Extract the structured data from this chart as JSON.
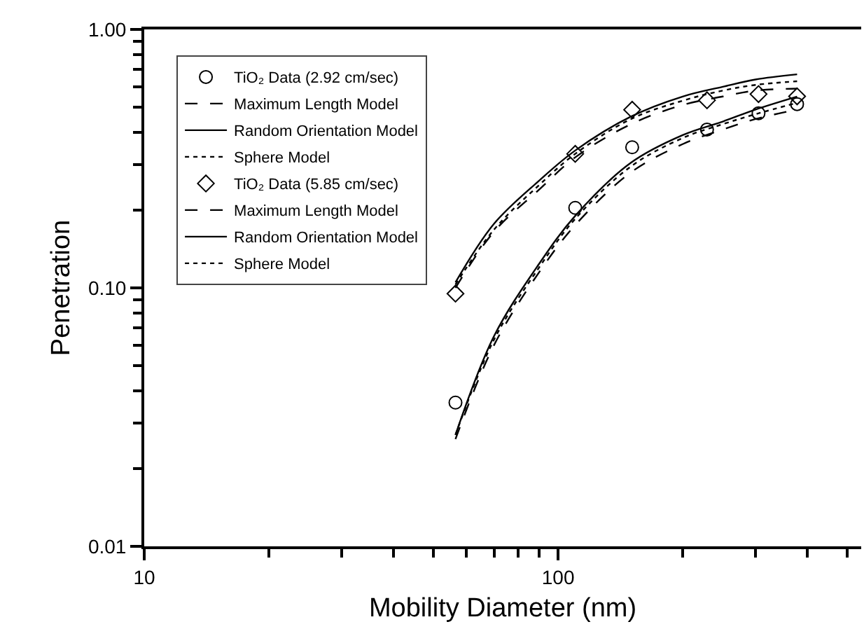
{
  "chart_data": {
    "type": "line",
    "xlabel": "Mobility Diameter (nm)",
    "ylabel": "Penetration",
    "log": "xy",
    "grid": false,
    "legend": "top left",
    "xlim": [
      10,
      540
    ],
    "xticks": [
      10,
      100
    ],
    "ylim": [
      0.01,
      1.0
    ],
    "yticks": [
      {
        "value": 0.01,
        "label": "0.01"
      },
      {
        "value": 0.1,
        "label": "0.10"
      },
      {
        "value": 1.0,
        "label": "1.00"
      }
    ],
    "series": [
      {
        "name": "TiO₂ Data (2.92 cm/sec)",
        "type": "scatter",
        "marker": "circle",
        "color": "#000000",
        "x": [
          56.5,
          110,
          151,
          229,
          305,
          378
        ],
        "values": [
          0.036,
          0.204,
          0.35,
          0.41,
          0.474,
          0.514
        ]
      },
      {
        "name": "Maximum Length Model",
        "line_style": "dashed",
        "color": "#000000",
        "x": [
          56.5,
          70,
          90,
          110,
          150,
          200,
          250,
          300,
          378
        ],
        "values": [
          0.026,
          0.06,
          0.115,
          0.175,
          0.28,
          0.36,
          0.41,
          0.45,
          0.49
        ]
      },
      {
        "name": "Random Orientation Model",
        "line_style": "solid",
        "color": "#000000",
        "x": [
          56.5,
          70,
          90,
          110,
          150,
          200,
          250,
          300,
          378
        ],
        "values": [
          0.027,
          0.065,
          0.124,
          0.19,
          0.305,
          0.39,
          0.44,
          0.49,
          0.55
        ]
      },
      {
        "name": "Sphere Model",
        "line_style": "dotted",
        "color": "#000000",
        "x": [
          56.5,
          70,
          90,
          110,
          150,
          200,
          250,
          300,
          378
        ],
        "values": [
          0.027,
          0.063,
          0.12,
          0.185,
          0.295,
          0.38,
          0.43,
          0.47,
          0.52
        ]
      },
      {
        "name": "TiO₂ Data (5.85 cm/sec)",
        "type": "scatter",
        "marker": "diamond",
        "color": "#000000",
        "x": [
          56.5,
          110,
          151,
          229,
          305,
          378
        ],
        "values": [
          0.095,
          0.33,
          0.489,
          0.532,
          0.562,
          0.551
        ]
      },
      {
        "name": "Maximum Length Model",
        "line_style": "dashed",
        "color": "#000000",
        "x": [
          56.5,
          70,
          90,
          110,
          150,
          200,
          250,
          300,
          378
        ],
        "values": [
          0.1,
          0.165,
          0.24,
          0.32,
          0.43,
          0.51,
          0.55,
          0.58,
          0.59
        ]
      },
      {
        "name": "Random Orientation Model",
        "line_style": "solid",
        "color": "#000000",
        "x": [
          56.5,
          70,
          90,
          110,
          150,
          200,
          250,
          300,
          378
        ],
        "values": [
          0.105,
          0.177,
          0.26,
          0.34,
          0.46,
          0.55,
          0.6,
          0.64,
          0.67
        ]
      },
      {
        "name": "Sphere Model",
        "line_style": "dotted",
        "color": "#000000",
        "x": [
          56.5,
          70,
          90,
          110,
          150,
          200,
          250,
          300,
          378
        ],
        "values": [
          0.103,
          0.168,
          0.25,
          0.33,
          0.45,
          0.53,
          0.58,
          0.61,
          0.63
        ]
      }
    ]
  }
}
